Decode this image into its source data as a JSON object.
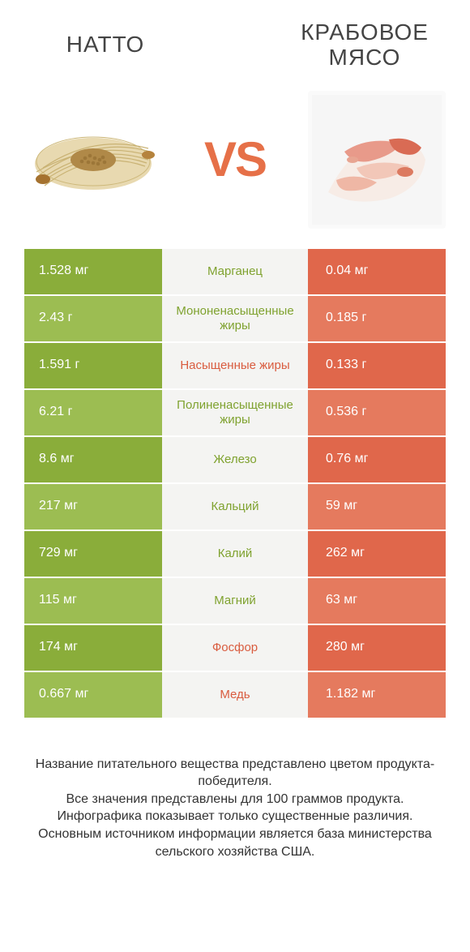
{
  "colors": {
    "green_dark": "#8aad3a",
    "green_light": "#9cbd52",
    "orange_dark": "#e0674b",
    "orange_light": "#e57a5e",
    "mid_bg": "#f4f4f2",
    "text_green": "#7fa22f",
    "text_orange": "#d95c3f",
    "vs_color": "#e67048"
  },
  "header": {
    "left_title": "НАТТО",
    "right_title": "КРАБОВОЕ МЯСО",
    "vs": "VS"
  },
  "table": {
    "rows": [
      {
        "left": "1.528 мг",
        "mid": "Марганец",
        "right": "0.04 мг",
        "winner": "left"
      },
      {
        "left": "2.43 г",
        "mid": "Мононенасыщенные жиры",
        "right": "0.185 г",
        "winner": "left"
      },
      {
        "left": "1.591 г",
        "mid": "Насыщенные жиры",
        "right": "0.133 г",
        "winner": "right"
      },
      {
        "left": "6.21 г",
        "mid": "Полиненасыщенные жиры",
        "right": "0.536 г",
        "winner": "left"
      },
      {
        "left": "8.6 мг",
        "mid": "Железо",
        "right": "0.76 мг",
        "winner": "left"
      },
      {
        "left": "217 мг",
        "mid": "Кальций",
        "right": "59 мг",
        "winner": "left"
      },
      {
        "left": "729 мг",
        "mid": "Калий",
        "right": "262 мг",
        "winner": "left"
      },
      {
        "left": "115 мг",
        "mid": "Магний",
        "right": "63 мг",
        "winner": "left"
      },
      {
        "left": "174 мг",
        "mid": "Фосфор",
        "right": "280 мг",
        "winner": "right"
      },
      {
        "left": "0.667 мг",
        "mid": "Медь",
        "right": "1.182 мг",
        "winner": "right"
      }
    ]
  },
  "footer": {
    "text": "Название питательного вещества представлено цветом продукта-победителя.\nВсе значения представлены для 100 граммов продукта.\nИнфографика показывает только существенные различия.\nОсновным источником информации является база министерства сельского хозяйства США."
  }
}
